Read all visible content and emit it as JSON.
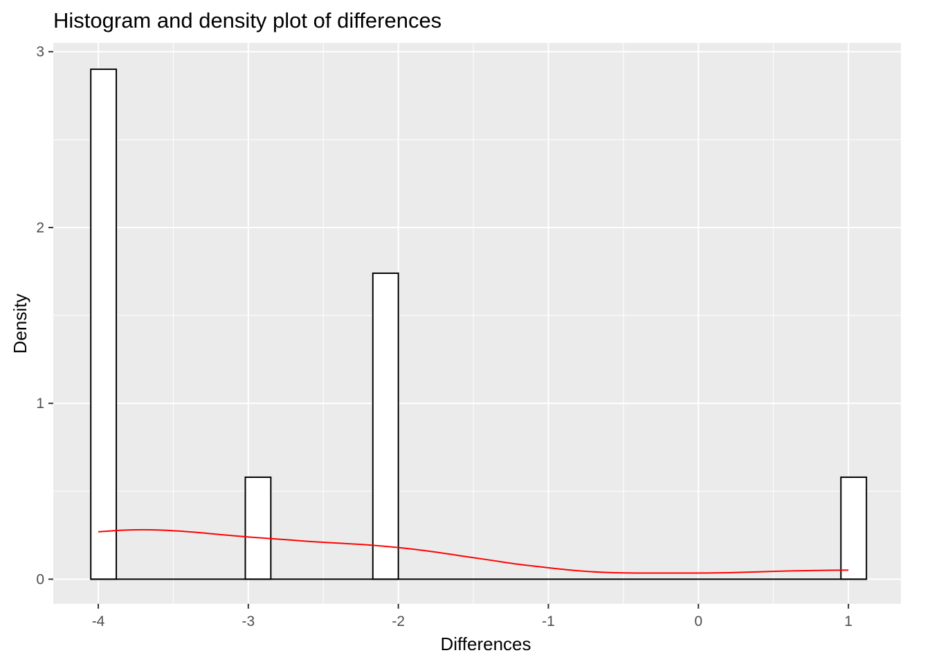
{
  "chart_data": {
    "type": "bar",
    "title": "Histogram and density plot of differences",
    "xlabel": "Differences",
    "ylabel": "Density",
    "xlim": [
      -4.3,
      1.35
    ],
    "ylim": [
      -0.14,
      3.05
    ],
    "x_ticks": [
      -4,
      -3,
      -2,
      -1,
      0,
      1
    ],
    "x_tick_labels": [
      "-4",
      "-3",
      "-2",
      "-1",
      "0",
      "1"
    ],
    "y_ticks": [
      0,
      1,
      2,
      3
    ],
    "y_tick_labels": [
      "0",
      "1",
      "2",
      "3"
    ],
    "bins": [
      {
        "xmin": -4.05,
        "xmax": -3.88,
        "density": 2.9
      },
      {
        "xmin": -3.02,
        "xmax": -2.85,
        "density": 0.58
      },
      {
        "xmin": -2.17,
        "xmax": -2.0,
        "density": 1.74
      },
      {
        "xmin": 0.95,
        "xmax": 1.12,
        "density": 0.58
      }
    ],
    "density_curve": {
      "x": [
        -4.0,
        -3.8,
        -3.6,
        -3.4,
        -3.2,
        -3.0,
        -2.8,
        -2.6,
        -2.4,
        -2.2,
        -2.0,
        -1.8,
        -1.6,
        -1.4,
        -1.2,
        -1.0,
        -0.8,
        -0.6,
        -0.4,
        -0.2,
        0.0,
        0.2,
        0.4,
        0.6,
        0.8,
        1.0
      ],
      "y": [
        0.27,
        0.28,
        0.28,
        0.27,
        0.255,
        0.24,
        0.228,
        0.215,
        0.205,
        0.195,
        0.18,
        0.16,
        0.135,
        0.11,
        0.085,
        0.065,
        0.048,
        0.038,
        0.035,
        0.035,
        0.035,
        0.037,
        0.042,
        0.047,
        0.05,
        0.052
      ]
    },
    "grid": true,
    "colors": {
      "panel": "#ebebeb",
      "grid": "#ffffff",
      "bar_fill": "#ffffff",
      "bar_outline": "#000000",
      "density_line": "#ff0000"
    }
  }
}
